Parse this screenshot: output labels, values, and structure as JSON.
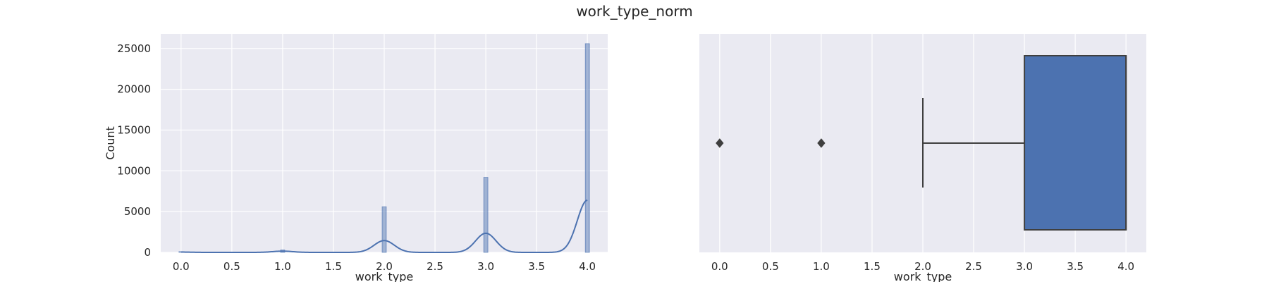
{
  "figure": {
    "title": "work_type_norm",
    "background": "#ffffff",
    "panel_background": "#eaeaf2",
    "grid_color": "#ffffff",
    "series_color": "#4c72b0"
  },
  "chart_data": [
    {
      "type": "histogram",
      "xlabel": "work_type",
      "ylabel": "Count",
      "xlim": [
        -0.2,
        4.2
      ],
      "ylim": [
        0,
        26800
      ],
      "xticks": [
        "0.0",
        "0.5",
        "1.0",
        "1.5",
        "2.0",
        "2.5",
        "3.0",
        "3.5",
        "4.0"
      ],
      "yticks": [
        "0",
        "5000",
        "10000",
        "15000",
        "20000",
        "25000"
      ],
      "grid": true,
      "kde": true,
      "bins": [
        {
          "x": 0,
          "count": 100
        },
        {
          "x": 1,
          "count": 300
        },
        {
          "x": 2,
          "count": 5600
        },
        {
          "x": 3,
          "count": 9200
        },
        {
          "x": 4,
          "count": 25600
        }
      ],
      "kde_peaks": [
        {
          "x": 0,
          "height": 40
        },
        {
          "x": 1,
          "height": 150
        },
        {
          "x": 2,
          "height": 1450
        },
        {
          "x": 3,
          "height": 2350
        },
        {
          "x": 4,
          "height": 6400
        }
      ]
    },
    {
      "type": "boxplot",
      "orientation": "horizontal",
      "xlabel": "work_type",
      "xlim": [
        -0.2,
        4.2
      ],
      "xticks": [
        "0.0",
        "0.5",
        "1.0",
        "1.5",
        "2.0",
        "2.5",
        "3.0",
        "3.5",
        "4.0"
      ],
      "grid": true,
      "whisker_low": 2.0,
      "q1": 3.0,
      "median": 4.0,
      "q3": 4.0,
      "whisker_high": 4.0,
      "outliers": [
        0.0,
        1.0
      ]
    }
  ]
}
